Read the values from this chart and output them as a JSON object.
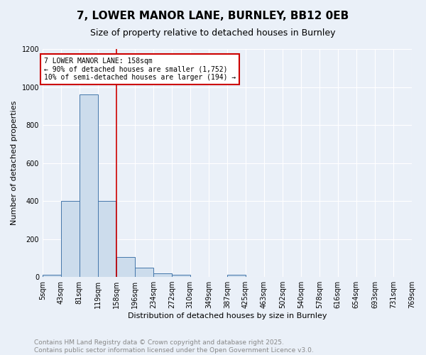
{
  "title": "7, LOWER MANOR LANE, BURNLEY, BB12 0EB",
  "subtitle": "Size of property relative to detached houses in Burnley",
  "xlabel": "Distribution of detached houses by size in Burnley",
  "ylabel": "Number of detached properties",
  "bin_edges": [
    5,
    43,
    81,
    119,
    158,
    196,
    234,
    272,
    310,
    349,
    387,
    425,
    463,
    502,
    540,
    578,
    616,
    654,
    693,
    731,
    769
  ],
  "bin_labels": [
    "5sqm",
    "43sqm",
    "81sqm",
    "119sqm",
    "158sqm",
    "196sqm",
    "234sqm",
    "272sqm",
    "310sqm",
    "349sqm",
    "387sqm",
    "425sqm",
    "463sqm",
    "502sqm",
    "540sqm",
    "578sqm",
    "616sqm",
    "654sqm",
    "693sqm",
    "731sqm",
    "769sqm"
  ],
  "bar_heights": [
    10,
    400,
    960,
    400,
    105,
    50,
    20,
    10,
    0,
    0,
    10,
    0,
    0,
    0,
    0,
    0,
    0,
    0,
    0,
    0
  ],
  "bar_color": "#ccdcec",
  "bar_edge_color": "#4477aa",
  "red_line_x": 158,
  "red_line_color": "#cc0000",
  "annotation_line1": "7 LOWER MANOR LANE: 158sqm",
  "annotation_line2": "← 90% of detached houses are smaller (1,752)",
  "annotation_line3": "10% of semi-detached houses are larger (194) →",
  "annotation_box_color": "#ffffff",
  "annotation_box_edge_color": "#cc0000",
  "ylim": [
    0,
    1200
  ],
  "yticks": [
    0,
    200,
    400,
    600,
    800,
    1000,
    1200
  ],
  "background_color": "#eaf0f8",
  "grid_color": "#ffffff",
  "title_fontsize": 11,
  "subtitle_fontsize": 9,
  "ylabel_fontsize": 8,
  "xlabel_fontsize": 8,
  "tick_fontsize": 7,
  "footer_text": "Contains HM Land Registry data © Crown copyright and database right 2025.\nContains public sector information licensed under the Open Government Licence v3.0.",
  "footer_fontsize": 6.5,
  "footer_color": "#888888"
}
